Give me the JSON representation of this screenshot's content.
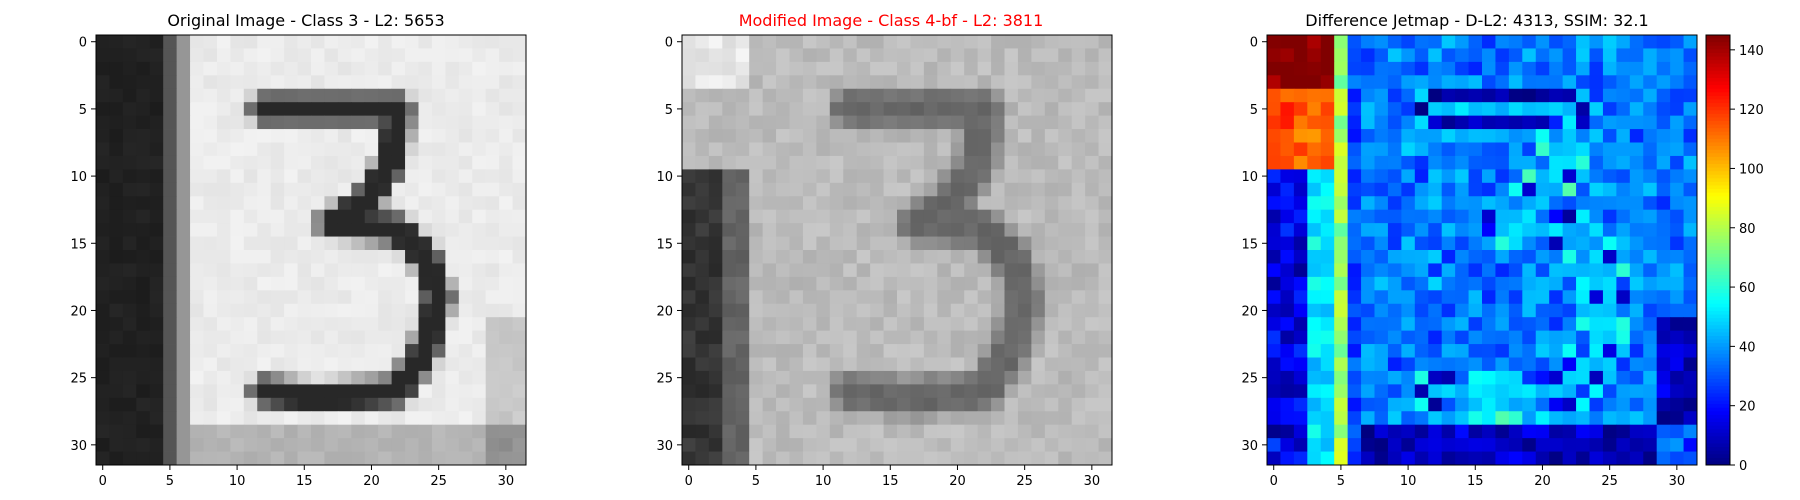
{
  "chart_data": [
    {
      "type": "heatmap",
      "title": "Original Image - Class 3 - L2: 5653",
      "title_color": "#000000",
      "colormap": "gray",
      "x_ticks": [
        "0",
        "5",
        "10",
        "15",
        "20",
        "25",
        "30"
      ],
      "y_ticks": [
        "0",
        "5",
        "10",
        "15",
        "20",
        "25",
        "30"
      ],
      "xlim": [
        -0.5,
        31.5
      ],
      "ylim": [
        31.5,
        -0.5
      ],
      "size": [
        32,
        32
      ]
    },
    {
      "type": "heatmap",
      "title": "Modified Image - Class 4-bf - L2: 3811",
      "title_color": "#ff0000",
      "colormap": "gray",
      "x_ticks": [
        "0",
        "5",
        "10",
        "15",
        "20",
        "25",
        "30"
      ],
      "y_ticks": [
        "0",
        "5",
        "10",
        "15",
        "20",
        "25",
        "30"
      ],
      "xlim": [
        -0.5,
        31.5
      ],
      "ylim": [
        31.5,
        -0.5
      ],
      "size": [
        32,
        32
      ]
    },
    {
      "type": "heatmap",
      "title": "Difference Jetmap - D-L2: 4313, SSIM: 32.1",
      "title_color": "#000000",
      "colormap": "jet",
      "x_ticks": [
        "0",
        "5",
        "10",
        "15",
        "20",
        "25",
        "30"
      ],
      "y_ticks": [
        "0",
        "5",
        "10",
        "15",
        "20",
        "25",
        "30"
      ],
      "xlim": [
        -0.5,
        31.5
      ],
      "ylim": [
        31.5,
        -0.5
      ],
      "size": [
        32,
        32
      ],
      "colorbar": {
        "ticks": [
          "0",
          "20",
          "40",
          "60",
          "80",
          "100",
          "120",
          "140"
        ],
        "range": [
          0,
          145
        ]
      }
    }
  ]
}
